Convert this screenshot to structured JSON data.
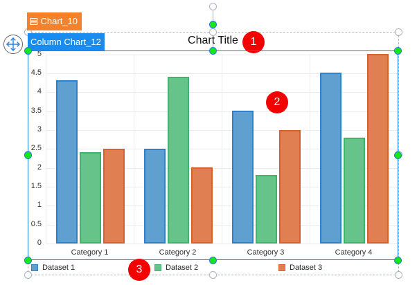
{
  "outer_tag": {
    "label": "Chart_10",
    "icon": "chart-layout-icon",
    "color": "#f5822a"
  },
  "inner_tag": {
    "label": "Column Chart_12",
    "color": "#1a8cf0"
  },
  "move_handle": {
    "icon": "move-arrows-icon"
  },
  "badges": [
    "1",
    "2",
    "3"
  ],
  "chart_data": {
    "type": "bar",
    "title": "Chart Title",
    "categories": [
      "Category 1",
      "Category 2",
      "Category 3",
      "Category 4"
    ],
    "series": [
      {
        "name": "Dataset 1",
        "values": [
          4.3,
          2.5,
          3.5,
          4.5
        ],
        "color": "#5fa0d0",
        "border": "#2f80c8"
      },
      {
        "name": "Dataset 2",
        "values": [
          2.4,
          4.4,
          1.8,
          2.8
        ],
        "color": "#66c38a",
        "border": "#3db46a"
      },
      {
        "name": "Dataset 3",
        "values": [
          2.5,
          2.0,
          3.0,
          5.0
        ],
        "color": "#e07f52",
        "border": "#d8602a"
      }
    ],
    "xlabel": "",
    "ylabel": "",
    "ylim": [
      0,
      5
    ],
    "yticks": [
      "0",
      "0.5",
      "1",
      "1.5",
      "2",
      "2.5",
      "3",
      "3.5",
      "4",
      "4.5",
      "5"
    ],
    "grid": true,
    "legend_position": "bottom"
  }
}
